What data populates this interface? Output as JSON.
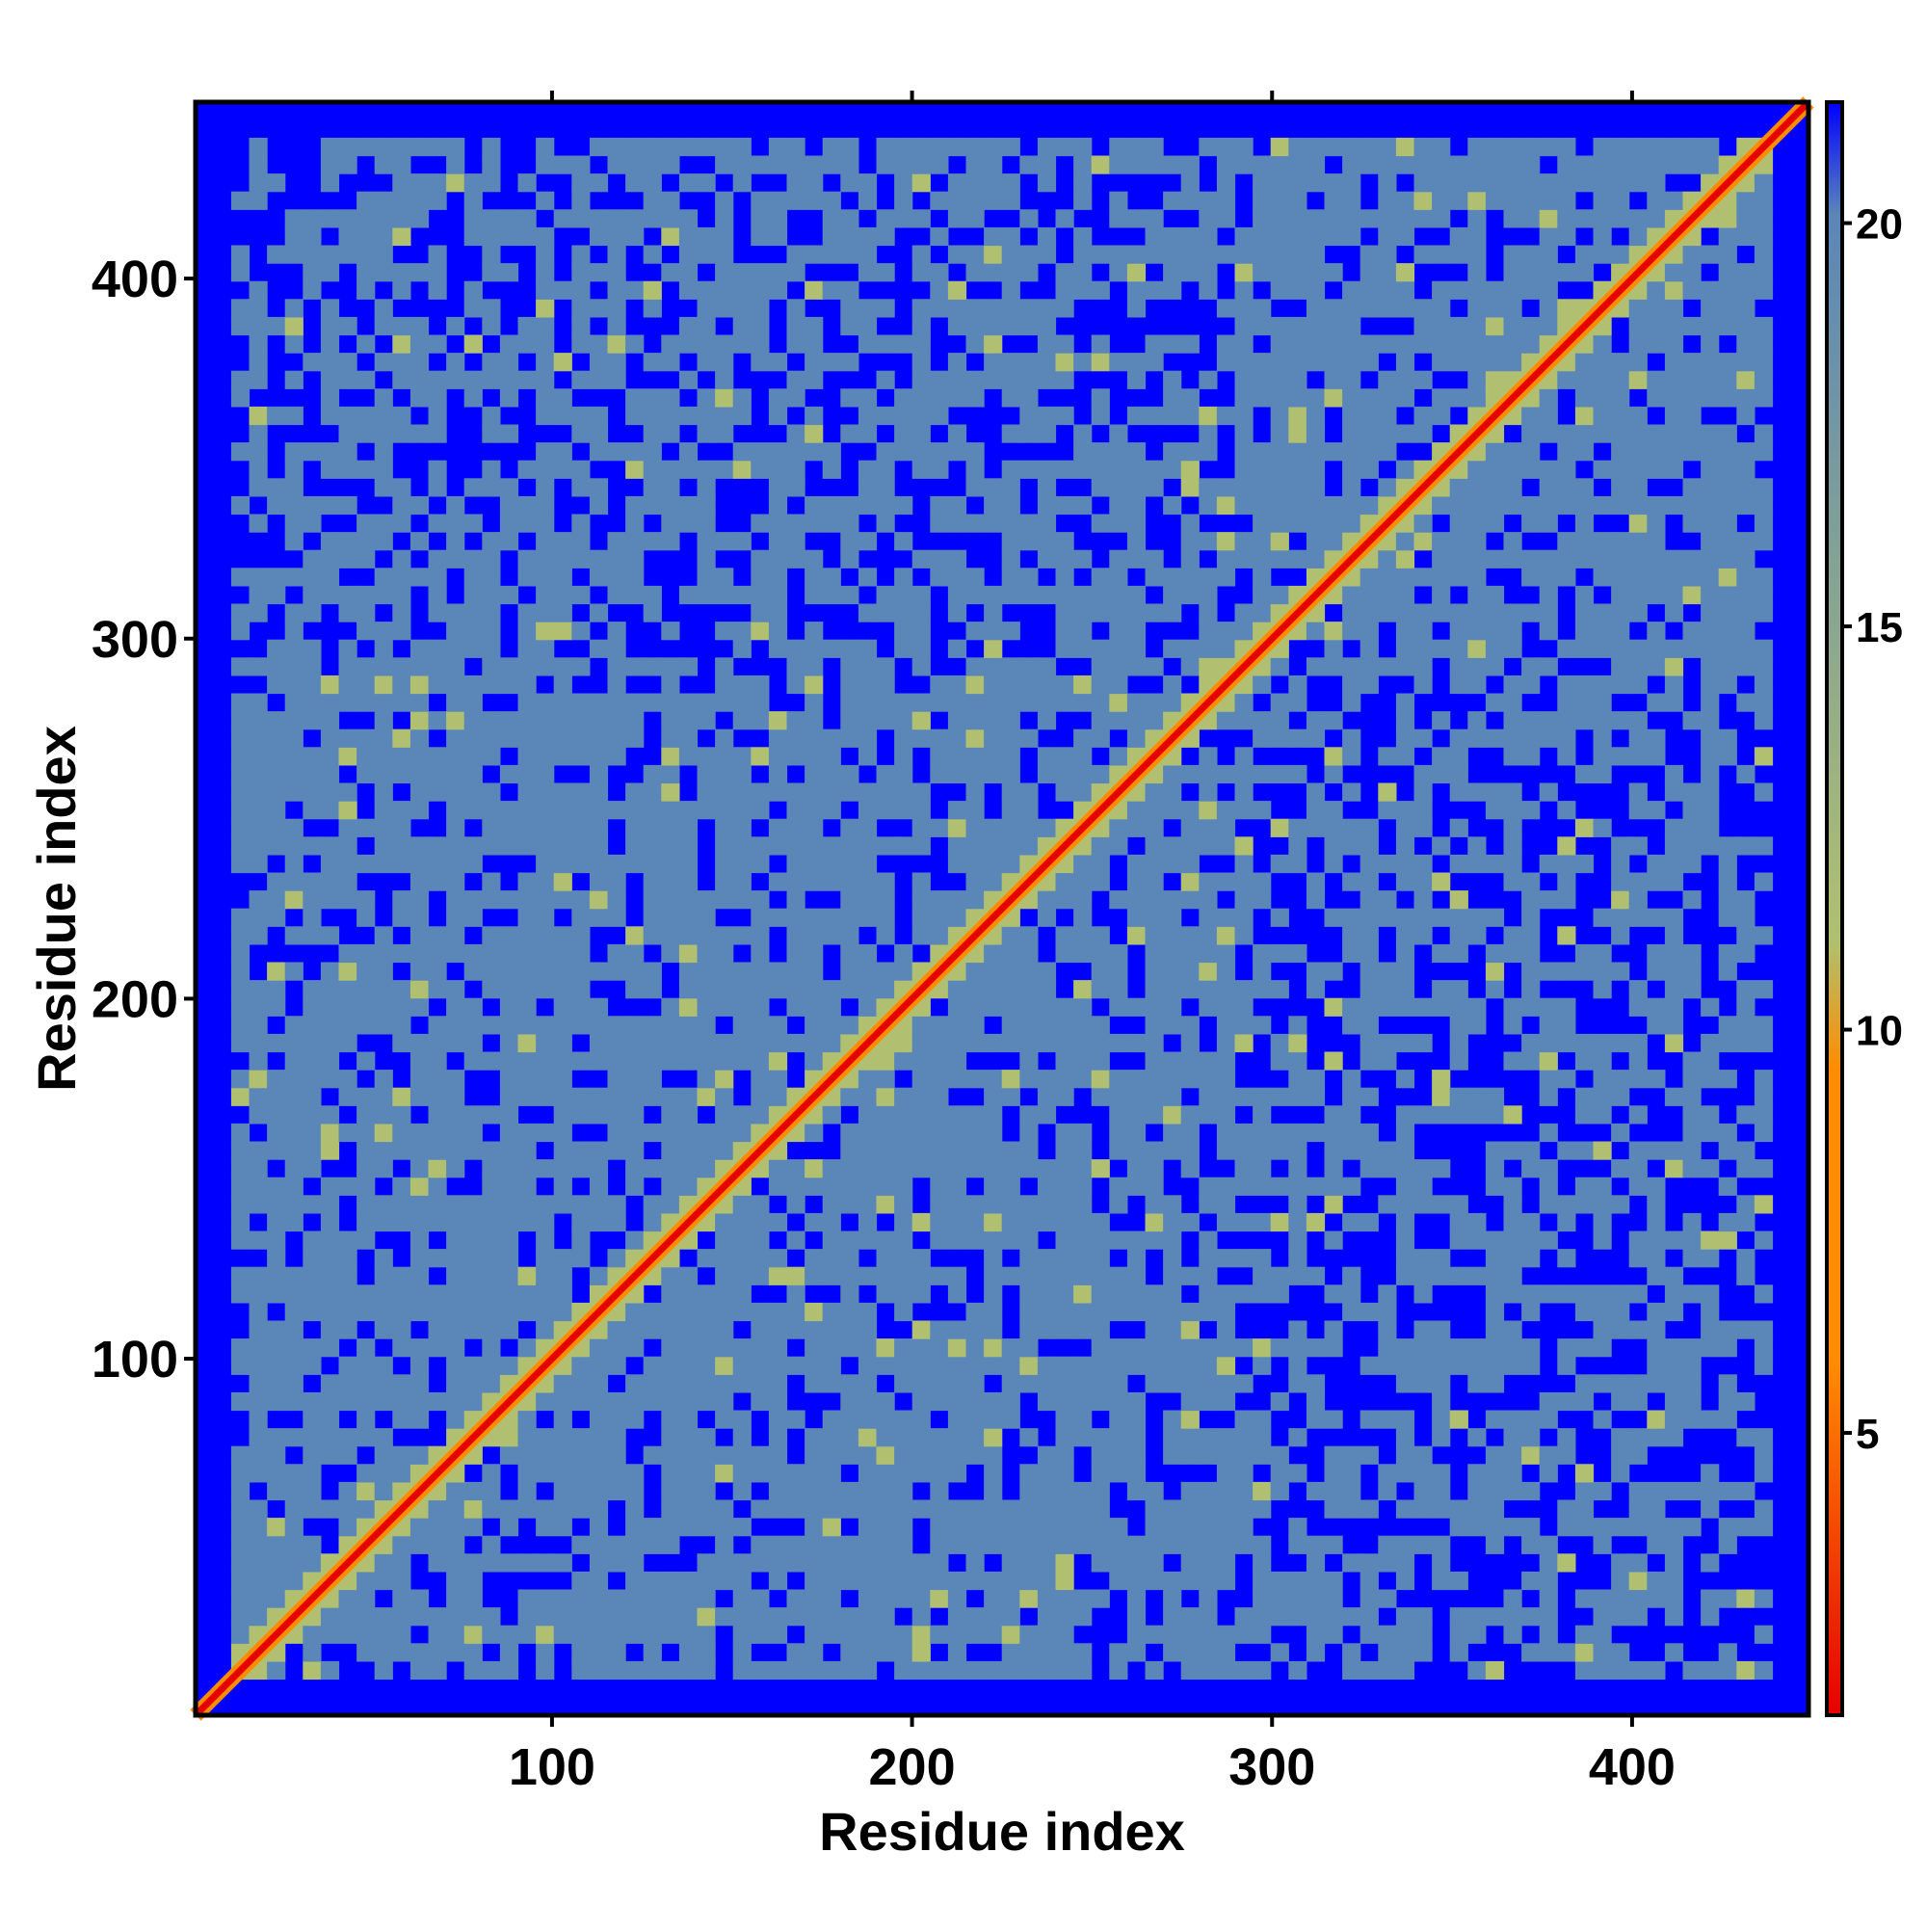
{
  "chart_data": {
    "type": "heatmap",
    "title": "",
    "xlabel": "Residue index",
    "ylabel": "Residue index",
    "xlim": [
      1,
      449
    ],
    "ylim": [
      1,
      449
    ],
    "x_ticks": [
      100,
      200,
      300,
      400
    ],
    "y_ticks": [
      100,
      200,
      300,
      400
    ],
    "colorbar": {
      "ticks": [
        5,
        10,
        15,
        20
      ],
      "range": [
        1.5,
        21.5
      ],
      "colors": [
        "#e60000",
        "#ff8c00",
        "#b0c070",
        "#5b86b8",
        "#0000ff"
      ]
    },
    "diagonal": "self-contact along the main diagonal (x = y)",
    "background_value": 21
  },
  "colors": {
    "far": "#0000ff",
    "mid": "#5b86b8",
    "near": "#b0c070",
    "close": "#ff8c00",
    "contact": "#e60000"
  }
}
